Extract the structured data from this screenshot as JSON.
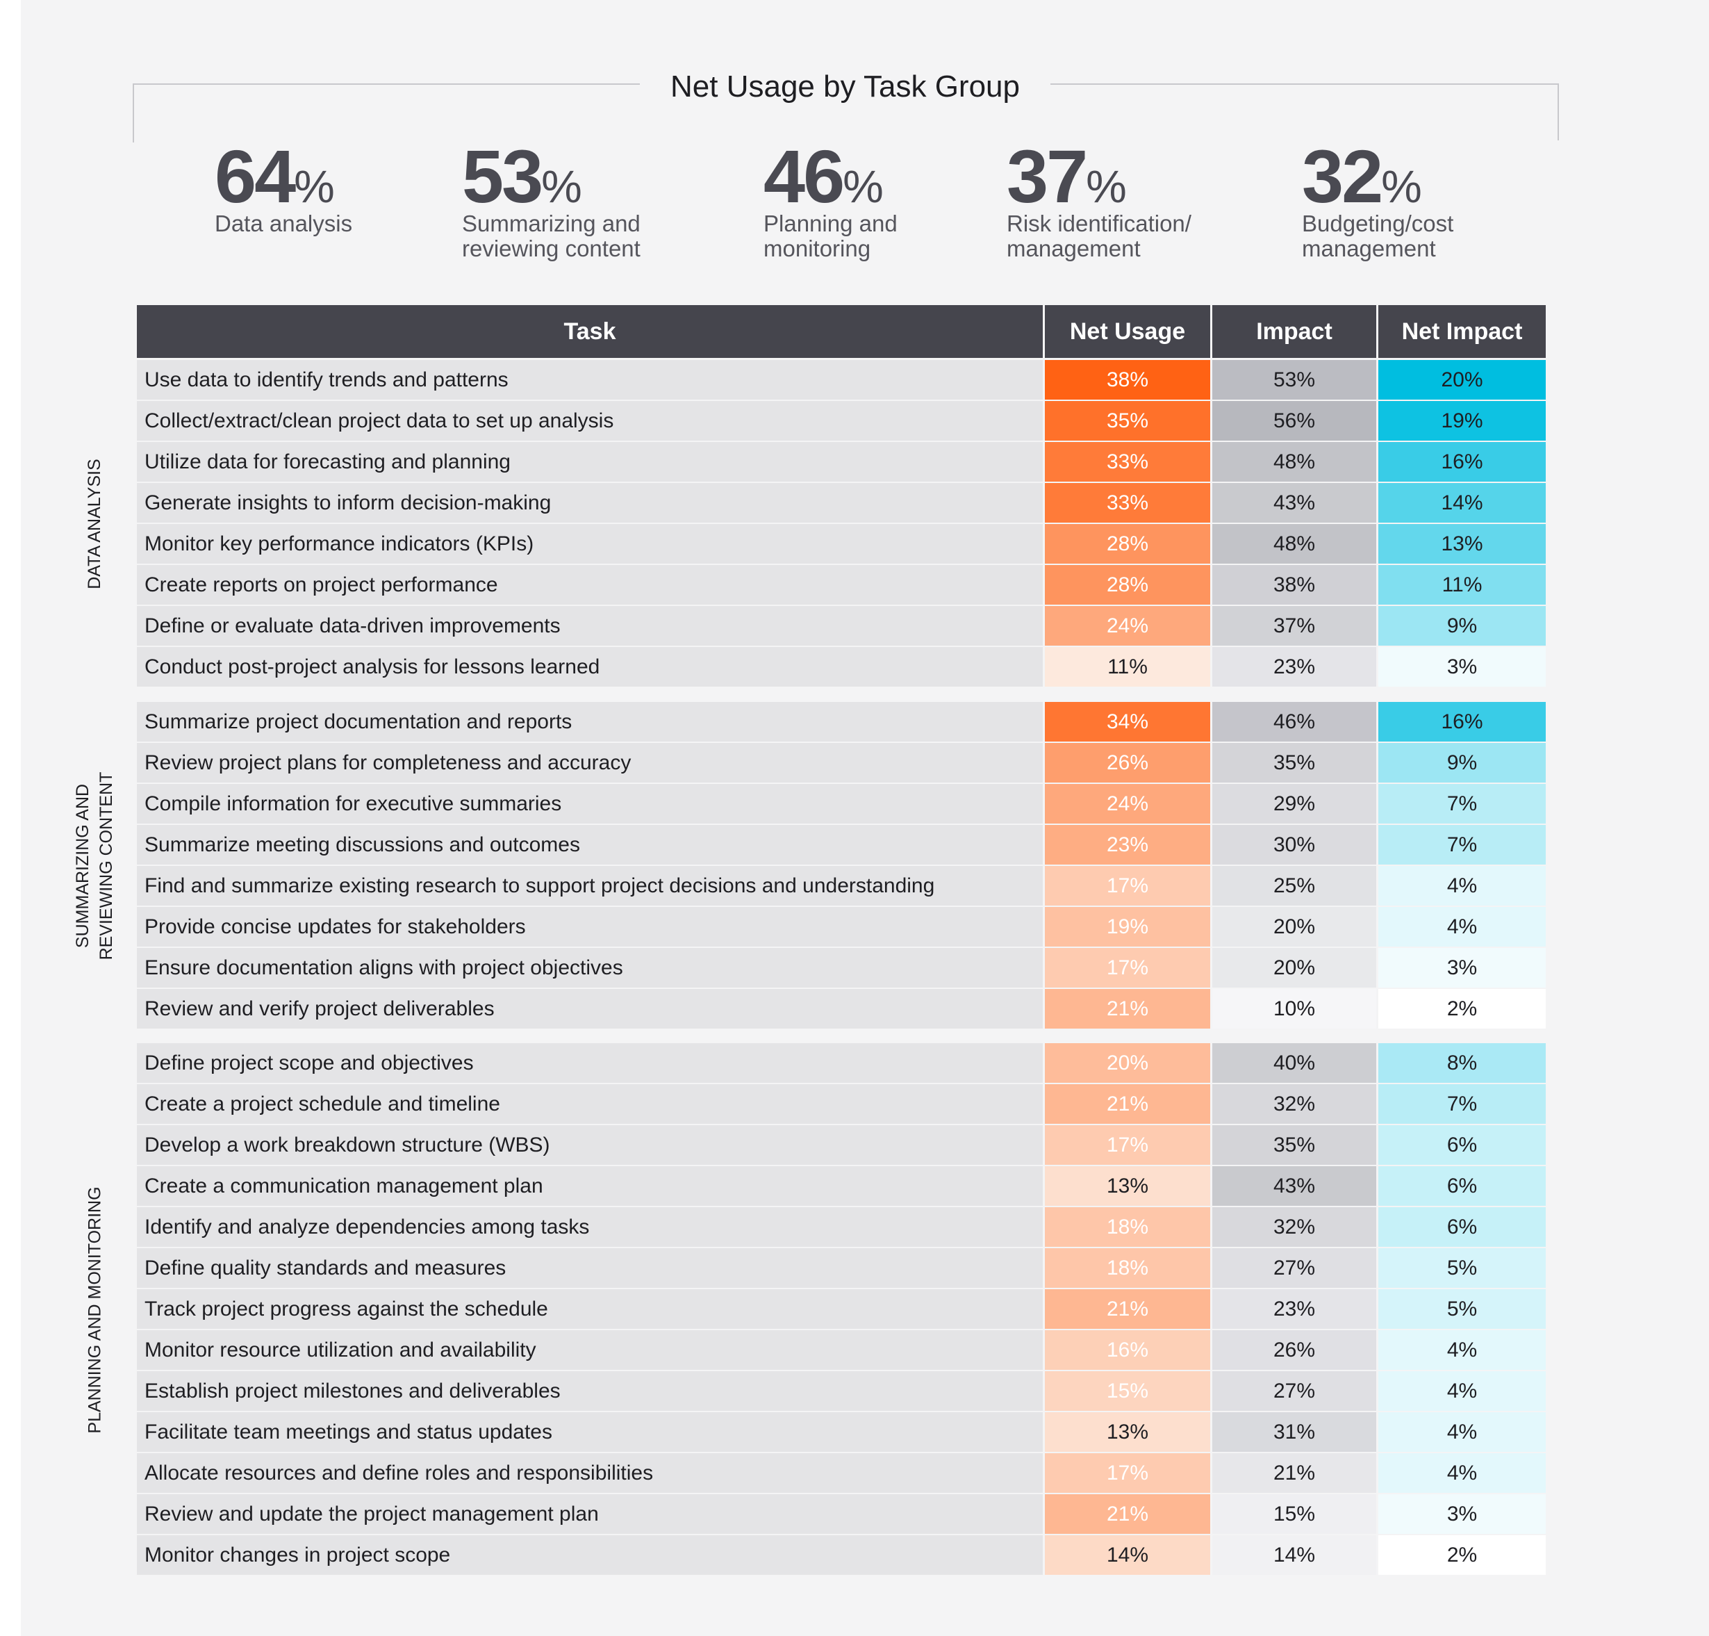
{
  "title": "Net Usage by Task Group",
  "stats": [
    {
      "value": "64%",
      "label_lines": [
        "Data analysis"
      ]
    },
    {
      "value": "53%",
      "label_lines": [
        "Summarizing and",
        "reviewing content"
      ]
    },
    {
      "value": "46%",
      "label_lines": [
        "Planning and",
        "monitoring"
      ]
    },
    {
      "value": "37%",
      "label_lines": [
        "Risk identification/",
        "management"
      ]
    },
    {
      "value": "32%",
      "label_lines": [
        "Budgeting/cost",
        "management"
      ]
    }
  ],
  "table": {
    "headers": [
      "Task",
      "Net Usage",
      "Impact",
      "Net Impact"
    ],
    "groups": [
      {
        "label_lines": [
          "DATA ANALYSIS"
        ],
        "rows": [
          [
            "Use data to identify trends and patterns",
            "38%",
            "53%",
            "20%"
          ],
          [
            "Collect/extract/clean project data to set up analysis",
            "35%",
            "56%",
            "19%"
          ],
          [
            "Utilize data for forecasting and planning",
            "33%",
            "48%",
            "16%"
          ],
          [
            "Generate insights to inform decision-making",
            "33%",
            "43%",
            "14%"
          ],
          [
            "Monitor key performance indicators (KPIs)",
            "28%",
            "48%",
            "13%"
          ],
          [
            "Create reports on project performance",
            "28%",
            "38%",
            "11%"
          ],
          [
            "Define or evaluate data-driven improvements",
            "24%",
            "37%",
            "9%"
          ],
          [
            "Conduct post-project analysis for lessons learned",
            "11%",
            "23%",
            "3%"
          ]
        ]
      },
      {
        "label_lines": [
          "SUMMARIZING AND",
          "REVIEWING CONTENT"
        ],
        "rows": [
          [
            "Summarize project documentation and reports",
            "34%",
            "46%",
            "16%"
          ],
          [
            "Review project plans for completeness and accuracy",
            "26%",
            "35%",
            "9%"
          ],
          [
            "Compile information for executive summaries",
            "24%",
            "29%",
            "7%"
          ],
          [
            "Summarize meeting discussions and outcomes",
            "23%",
            "30%",
            "7%"
          ],
          [
            "Find and summarize existing research to support project decisions and understanding",
            "17%",
            "25%",
            "4%"
          ],
          [
            "Provide concise updates for stakeholders",
            "19%",
            "20%",
            "4%"
          ],
          [
            "Ensure documentation aligns with project objectives",
            "17%",
            "20%",
            "3%"
          ],
          [
            "Review and verify project deliverables",
            "21%",
            "10%",
            "2%"
          ]
        ]
      },
      {
        "label_lines": [
          "PLANNING AND MONITORING"
        ],
        "rows": [
          [
            "Define project scope and objectives",
            "20%",
            "40%",
            "8%"
          ],
          [
            "Create a project schedule and timeline",
            "21%",
            "32%",
            "7%"
          ],
          [
            "Develop a work breakdown structure (WBS)",
            "17%",
            "35%",
            "6%"
          ],
          [
            "Create a communication management plan",
            "13%",
            "43%",
            "6%"
          ],
          [
            "Identify and analyze dependencies among tasks",
            "18%",
            "32%",
            "6%"
          ],
          [
            "Define quality standards and measures",
            "18%",
            "27%",
            "5%"
          ],
          [
            "Track project progress against the schedule",
            "21%",
            "23%",
            "5%"
          ],
          [
            "Monitor resource utilization and availability",
            "16%",
            "26%",
            "4%"
          ],
          [
            "Establish project milestones and deliverables",
            "15%",
            "27%",
            "4%"
          ],
          [
            "Facilitate team meetings and status updates",
            "13%",
            "31%",
            "4%"
          ],
          [
            "Allocate resources and define roles and responsibilities",
            "17%",
            "21%",
            "4%"
          ],
          [
            "Review and update the project management plan",
            "21%",
            "15%",
            "3%"
          ],
          [
            "Monitor changes in project scope",
            "14%",
            "14%",
            "2%"
          ]
        ]
      }
    ]
  }
}
